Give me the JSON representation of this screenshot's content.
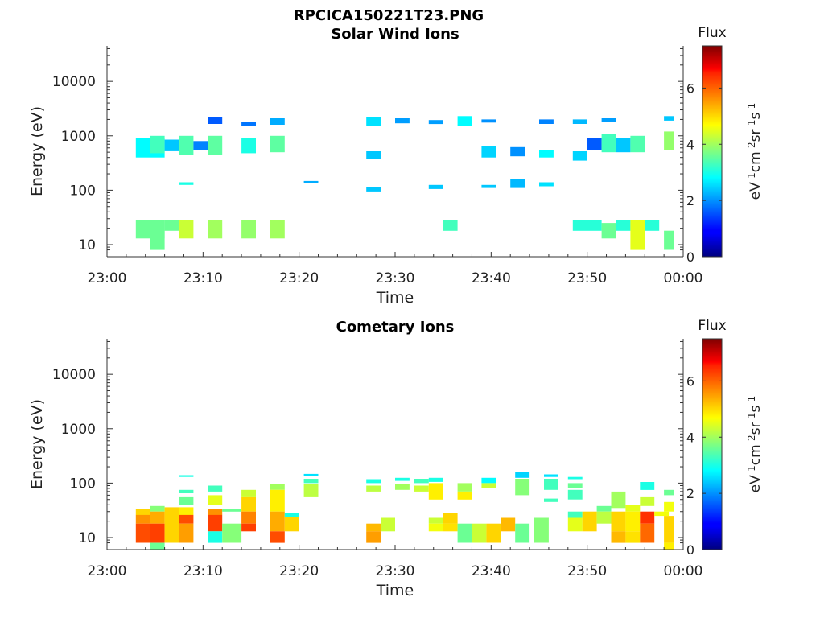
{
  "figure_title": "RPCICA150221T23.PNG",
  "chart_data": [
    {
      "type": "heatmap",
      "title": "Solar Wind Ions",
      "xlabel": "Time",
      "ylabel": "Energy (eV)",
      "x_ticks": [
        "23:00",
        "23:10",
        "23:20",
        "23:30",
        "23:40",
        "23:50",
        "00:00"
      ],
      "x_range_minutes": [
        0,
        60
      ],
      "y_scale": "log",
      "y_ticks": [
        "10",
        "100",
        "1000",
        "10000"
      ],
      "y_range": [
        6,
        45000
      ],
      "colorbar": {
        "title": "Flux",
        "unit": "eV-1cm-2sr-1s-1",
        "ticks": [
          "0",
          "2",
          "4",
          "6"
        ],
        "range": [
          0,
          7.5
        ],
        "colormap": "jet"
      },
      "cells": [
        [
          3,
          6,
          400,
          900,
          2.8
        ],
        [
          3,
          6,
          13,
          28,
          3.6
        ],
        [
          4.5,
          6,
          480,
          1000,
          3.3
        ],
        [
          4.5,
          6,
          8,
          25,
          3.6
        ],
        [
          6,
          7.5,
          520,
          850,
          2.4
        ],
        [
          6,
          7.5,
          18,
          28,
          3.6
        ],
        [
          7.5,
          9,
          450,
          1000,
          3.4
        ],
        [
          7.5,
          9,
          13,
          28,
          4.3
        ],
        [
          7.5,
          9,
          125,
          140,
          3.0
        ],
        [
          9,
          10.5,
          550,
          800,
          1.9
        ],
        [
          10.5,
          12,
          1650,
          2200,
          1.6
        ],
        [
          10.5,
          12,
          450,
          1000,
          3.5
        ],
        [
          10.5,
          12,
          13,
          28,
          4.0
        ],
        [
          14,
          15.5,
          1500,
          1800,
          1.8
        ],
        [
          14,
          15.5,
          480,
          900,
          3.0
        ],
        [
          14,
          15.5,
          13,
          28,
          3.9
        ],
        [
          17,
          18.5,
          1600,
          2100,
          2.2
        ],
        [
          17,
          18.5,
          500,
          1000,
          3.5
        ],
        [
          17,
          18.5,
          13,
          28,
          4.0
        ],
        [
          20.5,
          22,
          135,
          148,
          2.2
        ],
        [
          27,
          28.5,
          1500,
          2200,
          2.6
        ],
        [
          27,
          28.5,
          380,
          520,
          2.4
        ],
        [
          27,
          28.5,
          95,
          115,
          2.4
        ],
        [
          30,
          31.5,
          1700,
          2100,
          2.1
        ],
        [
          33.5,
          35,
          1650,
          1950,
          2.1
        ],
        [
          33.5,
          35,
          105,
          125,
          2.4
        ],
        [
          35,
          36.5,
          18,
          28,
          3.3
        ],
        [
          36.5,
          38,
          1500,
          2300,
          2.8
        ],
        [
          39,
          40.5,
          1750,
          2000,
          2.0
        ],
        [
          39,
          40.5,
          400,
          650,
          2.5
        ],
        [
          39,
          40.5,
          110,
          125,
          2.4
        ],
        [
          42,
          43.5,
          420,
          620,
          2.0
        ],
        [
          42,
          43.5,
          110,
          160,
          2.3
        ],
        [
          45,
          46.5,
          1650,
          2000,
          1.9
        ],
        [
          45,
          46.5,
          400,
          550,
          2.8
        ],
        [
          45,
          46.5,
          118,
          140,
          2.6
        ],
        [
          48.5,
          50,
          1650,
          2000,
          2.3
        ],
        [
          48.5,
          50,
          350,
          520,
          2.5
        ],
        [
          48.5,
          50,
          18,
          28,
          3.1
        ],
        [
          50,
          51.5,
          550,
          900,
          1.6
        ],
        [
          50,
          51.5,
          18,
          28,
          3.1
        ],
        [
          51.5,
          53,
          1800,
          2100,
          2.1
        ],
        [
          51.5,
          53,
          500,
          1100,
          3.3
        ],
        [
          51.5,
          53,
          13,
          25,
          3.6
        ],
        [
          53,
          54.5,
          500,
          900,
          2.4
        ],
        [
          53,
          54.5,
          18,
          28,
          3.1
        ],
        [
          54.5,
          56,
          500,
          1000,
          3.4
        ],
        [
          54.5,
          56,
          8,
          28,
          4.5
        ],
        [
          56,
          57.5,
          18,
          28,
          3.1
        ],
        [
          58,
          59,
          1900,
          2300,
          2.4
        ],
        [
          58,
          59,
          550,
          1200,
          3.9
        ],
        [
          58,
          59,
          8,
          18,
          3.6
        ]
      ]
    },
    {
      "type": "heatmap",
      "title": "Cometary Ions",
      "xlabel": "Time",
      "ylabel": "Energy (eV)",
      "x_ticks": [
        "23:00",
        "23:10",
        "23:20",
        "23:30",
        "23:40",
        "23:50",
        "00:00"
      ],
      "x_range_minutes": [
        0,
        60
      ],
      "y_scale": "log",
      "y_ticks": [
        "10",
        "100",
        "1000",
        "10000"
      ],
      "y_range": [
        6,
        45000
      ],
      "colorbar": {
        "title": "Flux",
        "unit": "eV-1cm-2sr-1s-1",
        "ticks": [
          "0",
          "2",
          "4",
          "6"
        ],
        "range": [
          0,
          7.5
        ],
        "colormap": "jet"
      },
      "cells": [
        [
          3,
          4.5,
          26,
          34,
          5.0
        ],
        [
          3,
          4.5,
          18,
          26,
          5.5
        ],
        [
          3,
          4.5,
          8,
          18,
          6.0
        ],
        [
          4.5,
          6,
          30,
          38,
          3.8
        ],
        [
          4.5,
          6,
          18,
          30,
          5.3
        ],
        [
          4.5,
          6,
          8,
          18,
          6.1
        ],
        [
          4.5,
          6,
          6,
          8,
          3.6
        ],
        [
          6,
          7.5,
          26,
          36,
          5.0
        ],
        [
          6,
          7.5,
          8,
          26,
          5.0
        ],
        [
          7.5,
          9,
          130,
          140,
          3.0
        ],
        [
          7.5,
          9,
          65,
          75,
          3.3
        ],
        [
          7.5,
          9,
          40,
          55,
          3.6
        ],
        [
          7.5,
          9,
          26,
          36,
          4.8
        ],
        [
          7.5,
          9,
          18,
          26,
          6.0
        ],
        [
          7.5,
          9,
          8,
          18,
          5.4
        ],
        [
          10.5,
          12,
          70,
          90,
          3.3
        ],
        [
          10.5,
          12,
          40,
          60,
          4.5
        ],
        [
          10.5,
          12,
          26,
          34,
          5.5
        ],
        [
          10.5,
          12,
          13,
          26,
          6.1
        ],
        [
          10.5,
          12,
          8,
          13,
          3.0
        ],
        [
          12,
          14,
          30,
          34,
          3.6
        ],
        [
          12,
          14,
          8,
          18,
          3.8
        ],
        [
          14,
          15.5,
          55,
          75,
          4.3
        ],
        [
          14,
          15.5,
          30,
          55,
          5.0
        ],
        [
          14,
          15.5,
          18,
          30,
          5.6
        ],
        [
          14,
          15.5,
          13,
          18,
          6.1
        ],
        [
          17,
          18.5,
          75,
          95,
          4.0
        ],
        [
          17,
          18.5,
          30,
          75,
          4.8
        ],
        [
          17,
          18.5,
          13,
          30,
          5.3
        ],
        [
          17,
          18.5,
          8,
          13,
          6.0
        ],
        [
          18.5,
          20,
          24,
          28,
          3.0
        ],
        [
          18.5,
          20,
          13,
          24,
          5.0
        ],
        [
          20.5,
          22,
          135,
          148,
          2.6
        ],
        [
          20.5,
          22,
          100,
          120,
          3.3
        ],
        [
          20.5,
          22,
          55,
          95,
          4.2
        ],
        [
          27,
          28.5,
          100,
          118,
          3.0
        ],
        [
          27,
          28.5,
          70,
          90,
          4.2
        ],
        [
          27,
          28.5,
          13,
          18,
          5.2
        ],
        [
          27,
          28.5,
          8,
          13,
          5.4
        ],
        [
          28.5,
          30,
          13,
          23,
          4.3
        ],
        [
          30,
          31.5,
          110,
          125,
          3.0
        ],
        [
          30,
          31.5,
          75,
          95,
          4.0
        ],
        [
          32,
          33.5,
          100,
          120,
          3.3
        ],
        [
          32,
          33.5,
          70,
          90,
          4.3
        ],
        [
          33.5,
          35,
          105,
          125,
          3.0
        ],
        [
          33.5,
          35,
          50,
          100,
          4.8
        ],
        [
          33.5,
          35,
          18,
          23,
          4.3
        ],
        [
          33.5,
          35,
          13,
          18,
          4.6
        ],
        [
          35,
          36.5,
          18,
          28,
          5.0
        ],
        [
          35,
          36.5,
          13,
          18,
          4.9
        ],
        [
          36.5,
          38,
          70,
          100,
          4.0
        ],
        [
          36.5,
          38,
          50,
          70,
          4.8
        ],
        [
          36.5,
          38,
          8,
          18,
          3.6
        ],
        [
          38,
          39.5,
          8,
          18,
          4.3
        ],
        [
          39,
          40.5,
          100,
          125,
          2.8
        ],
        [
          39,
          40.5,
          80,
          100,
          4.3
        ],
        [
          39.5,
          41,
          8,
          18,
          5.0
        ],
        [
          41,
          42.5,
          13,
          23,
          5.2
        ],
        [
          42.5,
          44,
          125,
          160,
          2.5
        ],
        [
          42.5,
          44,
          60,
          120,
          3.8
        ],
        [
          42.5,
          44,
          8,
          18,
          3.6
        ],
        [
          44.5,
          46,
          8,
          23,
          3.8
        ],
        [
          45.5,
          47,
          130,
          145,
          2.6
        ],
        [
          45.5,
          47,
          75,
          120,
          3.3
        ],
        [
          45.5,
          47,
          45,
          52,
          3.3
        ],
        [
          48,
          49.5,
          118,
          130,
          3.0
        ],
        [
          48,
          49.5,
          80,
          100,
          3.6
        ],
        [
          48,
          49.5,
          50,
          75,
          3.3
        ],
        [
          48,
          49.5,
          23,
          30,
          3.3
        ],
        [
          48,
          49.5,
          13,
          23,
          4.5
        ],
        [
          49.5,
          51,
          13,
          30,
          5.0
        ],
        [
          51,
          52.5,
          30,
          38,
          3.6
        ],
        [
          51,
          52.5,
          18,
          30,
          4.2
        ],
        [
          52.5,
          54,
          35,
          70,
          4.0
        ],
        [
          52.5,
          54,
          13,
          30,
          5.0
        ],
        [
          52.5,
          54,
          8,
          13,
          5.2
        ],
        [
          54,
          55.5,
          30,
          40,
          4.5
        ],
        [
          54,
          55.5,
          13,
          30,
          4.8
        ],
        [
          54,
          55.5,
          8,
          13,
          4.9
        ],
        [
          55.5,
          57,
          75,
          105,
          3.0
        ],
        [
          55.5,
          57,
          38,
          55,
          4.3
        ],
        [
          55.5,
          57,
          18,
          30,
          6.2
        ],
        [
          55.5,
          57,
          8,
          18,
          5.8
        ],
        [
          57,
          58.5,
          25,
          30,
          4.6
        ],
        [
          58,
          59,
          60,
          75,
          3.6
        ],
        [
          58,
          59,
          30,
          45,
          4.6
        ],
        [
          58,
          59,
          8,
          25,
          5.0
        ],
        [
          58,
          59,
          6,
          8,
          4.8
        ]
      ]
    }
  ]
}
